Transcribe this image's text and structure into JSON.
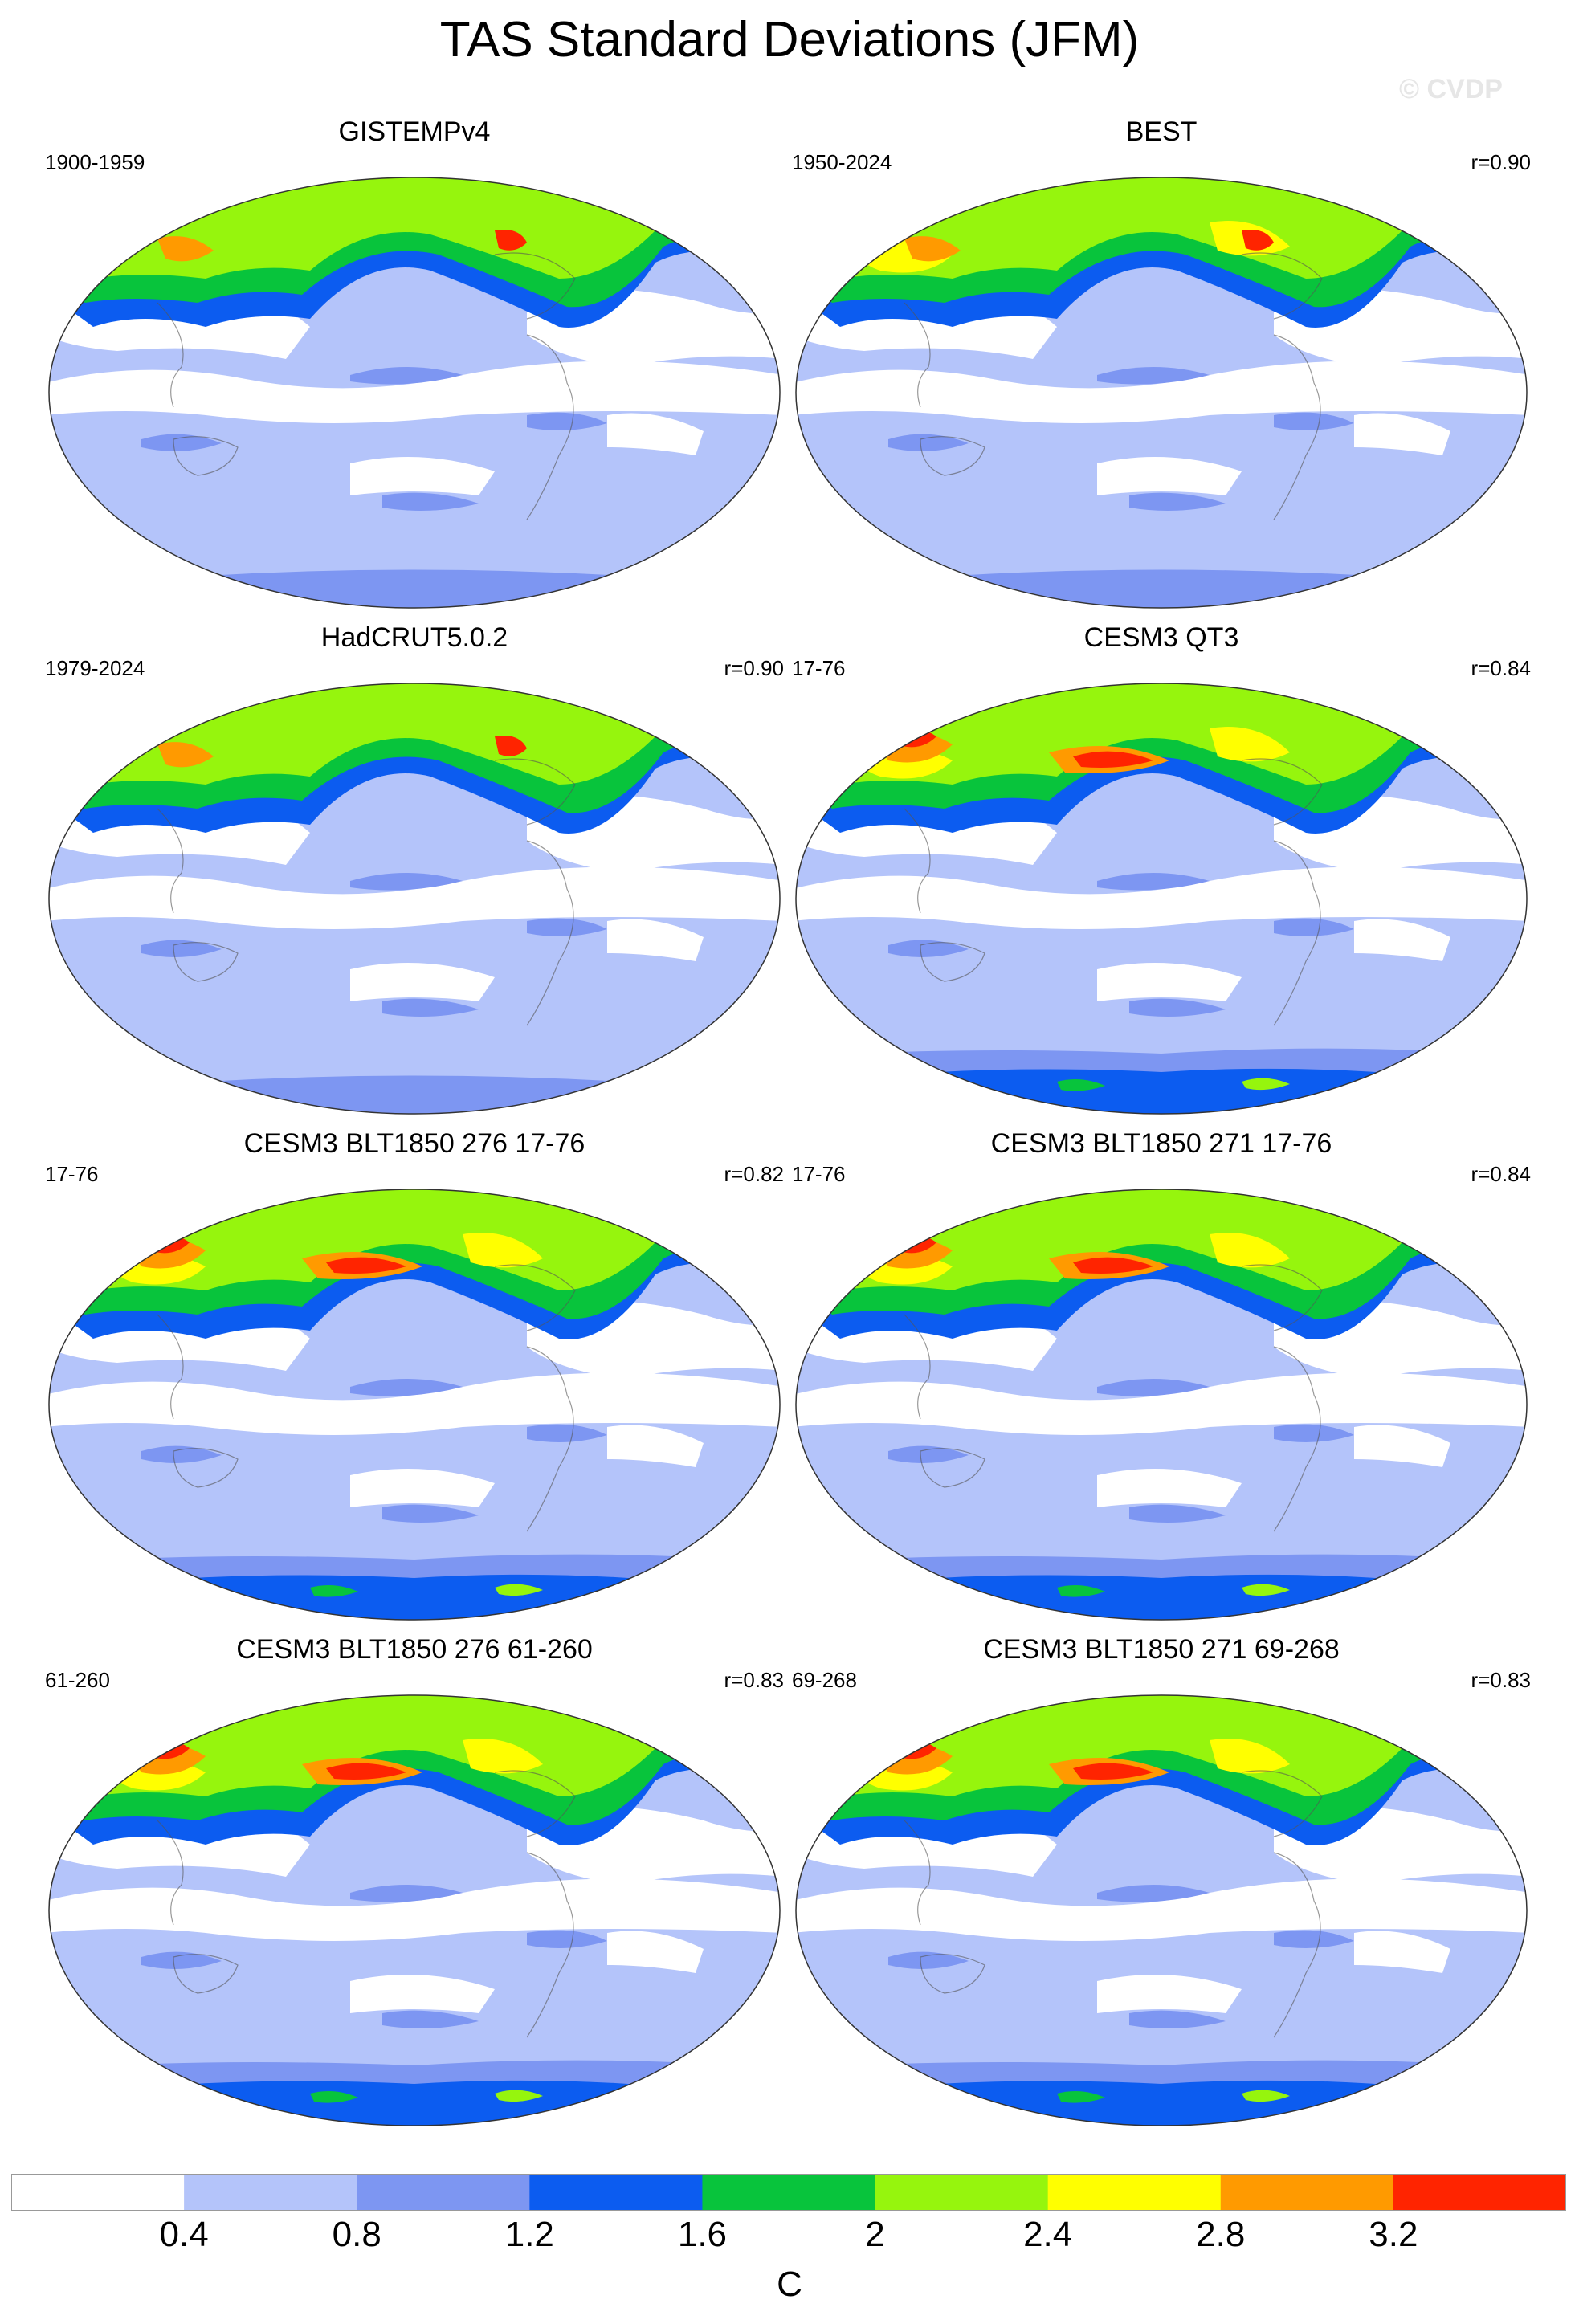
{
  "title": "TAS Standard Deviations (JFM)",
  "copyright": "© CVDP",
  "panels": [
    {
      "title": "GISTEMPv4",
      "period": "1900-1959",
      "corr": "",
      "kind": "obs-sparse"
    },
    {
      "title": "BEST",
      "period": "1950-2024",
      "corr": "r=0.90",
      "kind": "obs"
    },
    {
      "title": "HadCRUT5.0.2",
      "period": "1979-2024",
      "corr": "r=0.90",
      "kind": "obs-sparse"
    },
    {
      "title": "CESM3 QT3",
      "period": "17-76",
      "corr": "r=0.84",
      "kind": "model"
    },
    {
      "title": "CESM3 BLT1850 276 17-76",
      "period": "17-76",
      "corr": "r=0.82",
      "kind": "model"
    },
    {
      "title": "CESM3 BLT1850 271 17-76",
      "period": "17-76",
      "corr": "r=0.84",
      "kind": "model"
    },
    {
      "title": "CESM3 BLT1850 276 61-260",
      "period": "61-260",
      "corr": "r=0.83",
      "kind": "model"
    },
    {
      "title": "CESM3 BLT1850 271 69-268",
      "period": "69-268",
      "corr": "r=0.83",
      "kind": "model"
    }
  ],
  "colorbar": {
    "colors": [
      "#ffffff",
      "#b4c4fa",
      "#7d96f2",
      "#0c5cf0",
      "#08c43c",
      "#96f50d",
      "#ffff00",
      "#ff9a00",
      "#ff2400"
    ],
    "labels": [
      "0.4",
      "0.8",
      "1.2",
      "1.6",
      "2",
      "2.4",
      "2.8",
      "3.2"
    ],
    "units": "C"
  }
}
